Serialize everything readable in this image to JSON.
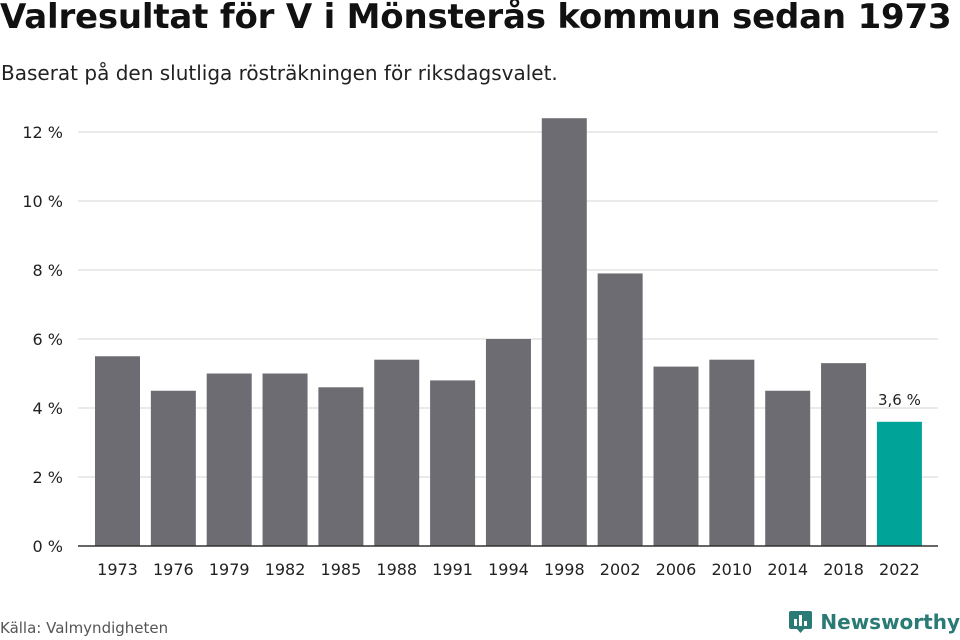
{
  "title": "Valresultat för V i Mönsterås kommun sedan 1973",
  "subtitle": "Baserat på den slutliga rösträkningen för riksdagsvalet.",
  "source": "Källa: Valmyndigheten",
  "brand": "Newsworthy",
  "colors": {
    "bar": "#6d6c72",
    "highlight": "#00a398",
    "grid": "#dddddd",
    "axis": "#333333",
    "brand": "#2a7a75"
  },
  "chart_data": {
    "type": "bar",
    "title": "Valresultat för V i Mönsterås kommun sedan 1973",
    "subtitle": "Baserat på den slutliga rösträkningen för riksdagsvalet.",
    "xlabel": "",
    "ylabel": "",
    "categories": [
      "1973",
      "1976",
      "1979",
      "1982",
      "1985",
      "1988",
      "1991",
      "1994",
      "1998",
      "2002",
      "2006",
      "2010",
      "2014",
      "2018",
      "2022"
    ],
    "values": [
      5.5,
      4.5,
      5.0,
      5.0,
      4.6,
      5.4,
      4.8,
      6.0,
      12.4,
      7.9,
      5.2,
      5.4,
      4.5,
      5.3,
      3.6
    ],
    "highlight_index": 14,
    "annotation": "3,6 %",
    "ylim": [
      0,
      12
    ],
    "yticks": [
      0,
      2,
      4,
      6,
      8,
      10,
      12
    ],
    "ytick_labels": [
      "0 %",
      "2 %",
      "4 %",
      "6 %",
      "8 %",
      "10 %",
      "12 %"
    ],
    "grid": true,
    "legend": "none"
  }
}
